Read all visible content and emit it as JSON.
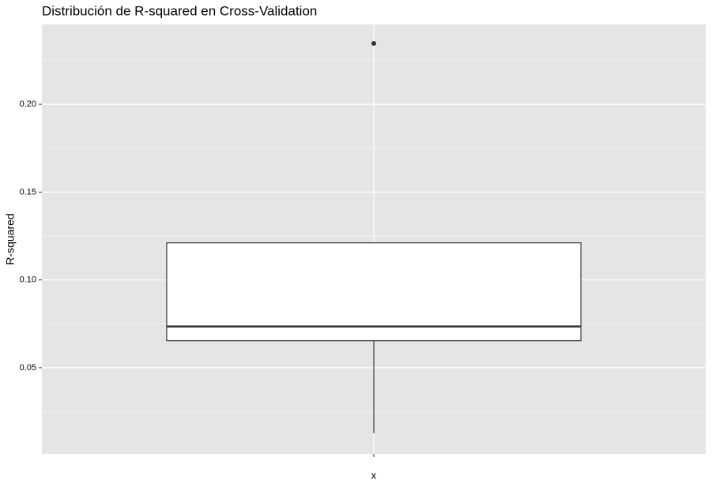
{
  "chart_data": {
    "type": "box",
    "title": "Distribución de R-squared en Cross-Validation",
    "y_label": "R-squared",
    "categories": [
      "x"
    ],
    "boxes": [
      {
        "whislo": 0.0127,
        "q1": 0.0654,
        "med": 0.0735,
        "q3": 0.1211,
        "whishi": 0.1211,
        "outliers": [
          0.2346
        ]
      }
    ],
    "ylim": [
      0.001,
      0.2454
    ],
    "yticks": [
      {
        "value": 0.05,
        "label": "0.05"
      },
      {
        "value": 0.1,
        "label": "0.10"
      },
      {
        "value": 0.15,
        "label": "0.15"
      },
      {
        "value": 0.2,
        "label": "0.20"
      }
    ],
    "y_minor_ticks": [
      0.025,
      0.075,
      0.125,
      0.175,
      0.225
    ],
    "grid": true,
    "panel_color": "#e5e5e5",
    "box_fill": "#ffffff",
    "line_color": "#333333"
  }
}
